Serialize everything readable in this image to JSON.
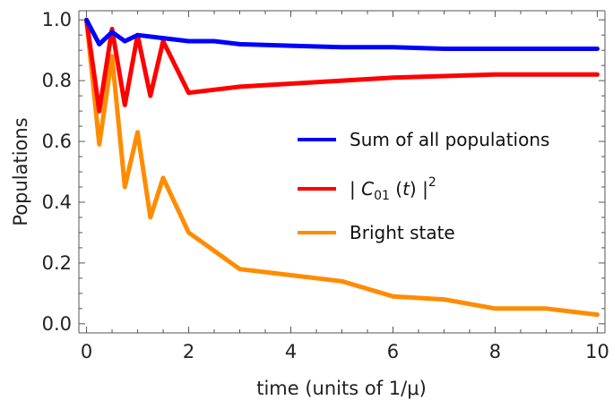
{
  "chart_data": {
    "type": "line",
    "title": "",
    "xlabel": "time (units of 1/μ)",
    "ylabel": "Populations",
    "xlim": [
      -0.15,
      10.15
    ],
    "ylim": [
      -0.03,
      1.03
    ],
    "xticks": [
      0,
      2,
      4,
      6,
      8,
      10
    ],
    "xtick_labels": [
      "0",
      "2",
      "4",
      "6",
      "8",
      "10"
    ],
    "yticks": [
      0.0,
      0.2,
      0.4,
      0.6,
      0.8,
      1.0
    ],
    "ytick_labels": [
      "0.0",
      "0.2",
      "0.4",
      "0.6",
      "0.8",
      "1.0"
    ],
    "grid": false,
    "legend_position": "right",
    "series": [
      {
        "name": "Sum of all populations",
        "color": "#0000ff",
        "x": [
          0,
          0.25,
          0.5,
          0.75,
          1,
          1.5,
          2,
          2.5,
          3,
          4,
          5,
          6,
          7,
          8,
          9,
          10
        ],
        "values": [
          1.0,
          0.92,
          0.96,
          0.93,
          0.95,
          0.94,
          0.93,
          0.93,
          0.92,
          0.915,
          0.91,
          0.91,
          0.905,
          0.905,
          0.905,
          0.905
        ]
      },
      {
        "name": "|C01(t)|²",
        "color": "#ff0000",
        "x": [
          0,
          0.25,
          0.5,
          0.75,
          1.0,
          1.25,
          1.5,
          2,
          3,
          4,
          5,
          6,
          7,
          8,
          9,
          10
        ],
        "values": [
          1.0,
          0.7,
          0.97,
          0.72,
          0.95,
          0.75,
          0.93,
          0.76,
          0.78,
          0.79,
          0.8,
          0.81,
          0.815,
          0.82,
          0.82,
          0.82
        ]
      },
      {
        "name": "Bright state",
        "color": "#ff8c00",
        "x": [
          0,
          0.25,
          0.5,
          0.75,
          1.0,
          1.25,
          1.5,
          2,
          3,
          4,
          5,
          6,
          7,
          8,
          9,
          10
        ],
        "values": [
          1.0,
          0.59,
          0.88,
          0.45,
          0.63,
          0.35,
          0.48,
          0.3,
          0.18,
          0.16,
          0.14,
          0.09,
          0.08,
          0.05,
          0.05,
          0.03
        ]
      }
    ],
    "legend": [
      {
        "text": "Sum of all populations",
        "color": "#0000ff"
      },
      {
        "text_prefix": "| ",
        "text_italic": "C",
        "text_sub": "01",
        "text_mid": " (",
        "text_italic2": "t",
        "text_suffix": ") |",
        "text_sup": "2",
        "color": "#ff0000"
      },
      {
        "text": "Bright state",
        "color": "#ff8c00"
      }
    ]
  }
}
